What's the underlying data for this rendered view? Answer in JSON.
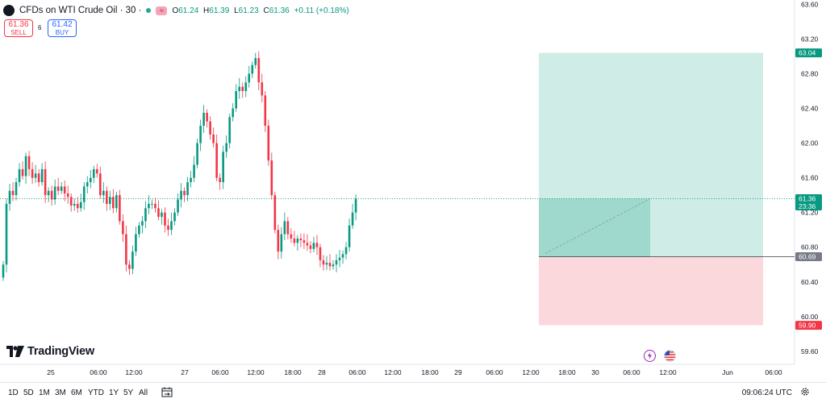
{
  "header": {
    "title": "CFDs on WTI Crude Oil · 30 ·",
    "ohlc": {
      "o_label": "O",
      "o": "61.24",
      "h_label": "H",
      "h": "61.39",
      "l_label": "L",
      "l": "61.23",
      "c_label": "C",
      "c": "61.36",
      "change": "+0.11 (+0.18%)"
    }
  },
  "trade": {
    "sell_price": "61.36",
    "sell_label": "SELL",
    "spread": "6",
    "buy_price": "61.42",
    "buy_label": "BUY"
  },
  "logo_text": "TradingView",
  "timeframes": [
    "1D",
    "5D",
    "1M",
    "3M",
    "6M",
    "YTD",
    "1Y",
    "5Y",
    "All"
  ],
  "clock": "09:06:24 UTC",
  "colors": {
    "up": "#089981",
    "down": "#f23645",
    "profit_zone": "#cfece6",
    "profit_zone_active": "#9fd8cd",
    "loss_zone": "#fbd8dc",
    "last_price_label": "#089981",
    "entry_label": "#787b86",
    "sell_btn": "#f23645",
    "buy_btn": "#2962ff"
  },
  "icons": [
    "flash-icon",
    "us-flag-icon",
    "gear-icon",
    "calendar-range-icon"
  ],
  "chart_data": {
    "type": "candlestick",
    "y_ticks": [
      "63.60",
      "63.20",
      "62.80",
      "62.40",
      "62.00",
      "61.60",
      "61.20",
      "60.80",
      "60.40",
      "60.00",
      "59.60"
    ],
    "y_range": [
      59.45,
      63.65
    ],
    "x_ticks": [
      "25",
      "06:00",
      "12:00",
      "27",
      "06:00",
      "12:00",
      "18:00",
      "28",
      "06:00",
      "12:00",
      "18:00",
      "29",
      "06:00",
      "12:00",
      "18:00",
      "30",
      "06:00",
      "12:00",
      "Jun",
      "06:00"
    ],
    "price_labels": {
      "target": "63.04",
      "last": "61.36",
      "countdown": "23:36",
      "entry": "60.69",
      "stop": "59.90"
    },
    "position": {
      "entry": 60.69,
      "target": 63.04,
      "stop": 59.9,
      "current": 61.36
    },
    "closes": [
      60.6,
      61.3,
      61.45,
      61.4,
      61.55,
      61.7,
      61.62,
      61.85,
      61.7,
      61.6,
      61.65,
      61.55,
      61.7,
      61.4,
      61.45,
      61.35,
      61.5,
      61.45,
      61.5,
      61.42,
      61.38,
      61.28,
      61.3,
      61.25,
      61.32,
      61.5,
      61.55,
      61.6,
      61.7,
      61.65,
      61.4,
      61.45,
      61.3,
      61.38,
      61.25,
      61.4,
      61.1,
      60.95,
      60.6,
      60.55,
      60.75,
      60.95,
      61.05,
      61.1,
      61.25,
      61.3,
      61.3,
      61.25,
      61.15,
      61.2,
      61.05,
      61.0,
      61.1,
      61.2,
      61.35,
      61.45,
      61.4,
      61.55,
      61.6,
      61.75,
      62.0,
      62.2,
      62.35,
      62.25,
      62.1,
      62.0,
      61.6,
      61.55,
      61.9,
      62.0,
      62.3,
      62.4,
      62.6,
      62.65,
      62.6,
      62.7,
      62.8,
      62.9,
      62.98,
      62.7,
      62.55,
      62.2,
      61.8,
      61.4,
      61.0,
      60.75,
      60.95,
      61.1,
      60.95,
      60.9,
      60.85,
      60.9,
      60.88,
      60.85,
      60.82,
      60.78,
      60.85,
      60.8,
      60.65,
      60.6,
      60.62,
      60.58,
      60.6,
      60.65,
      60.68,
      60.72,
      60.8,
      61.05,
      61.2,
      61.36
    ]
  }
}
